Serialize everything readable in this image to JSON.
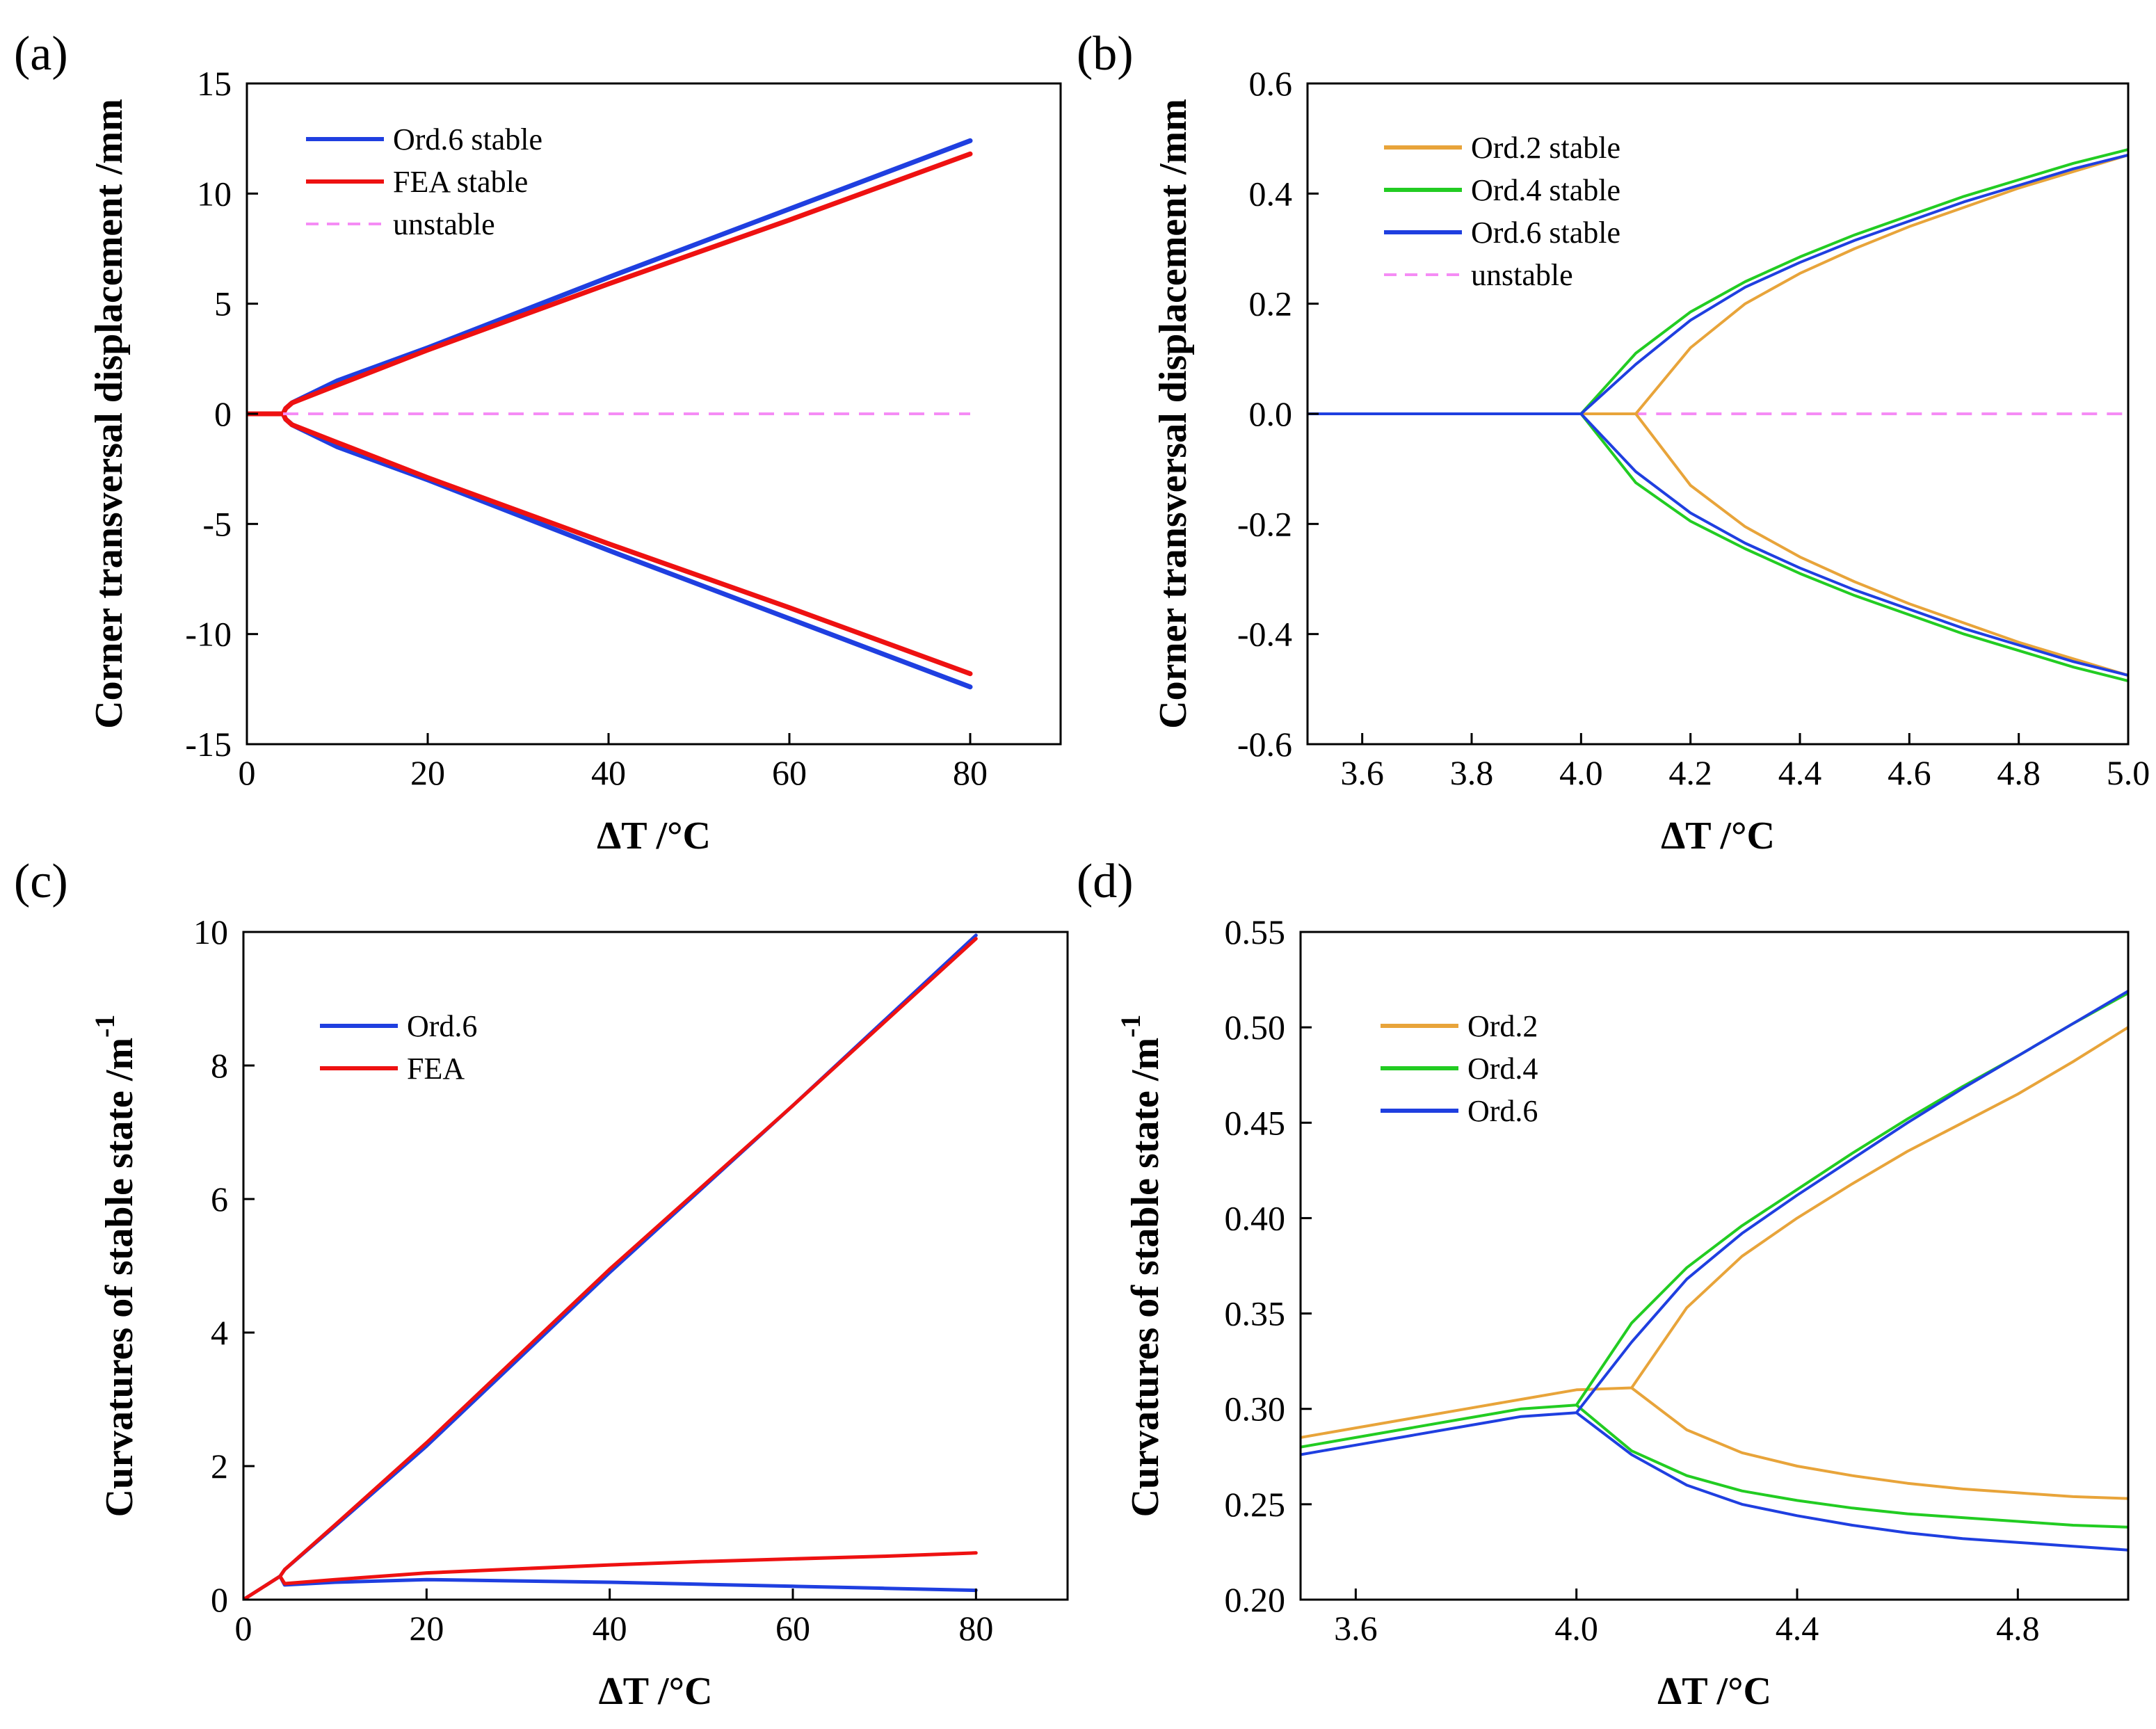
{
  "figure": {
    "panel_labels": [
      "(a)",
      "(b)",
      "(c)",
      "(d)"
    ]
  },
  "chart_data": [
    {
      "id": "a",
      "type": "line",
      "panel_label": "(a)",
      "xlabel": "ΔT /°C",
      "ylabel": "Corner transversal displacement /mm",
      "xlim": [
        0,
        90
      ],
      "ylim": [
        -15,
        15
      ],
      "xticks": [
        0,
        20,
        40,
        60,
        80
      ],
      "xtick_labels": [
        "0",
        "20",
        "40",
        "60",
        "80"
      ],
      "yticks": [
        -15,
        -10,
        -5,
        0,
        5,
        10,
        15
      ],
      "ytick_labels": [
        "-15",
        "-10",
        "-5",
        "0",
        "5",
        "10",
        "15"
      ],
      "legend_position": "top-left",
      "legend": [
        {
          "label": "Ord.6 stable",
          "color": "#1f3fe0",
          "dashed": false
        },
        {
          "label": "FEA stable",
          "color": "#ee1111",
          "dashed": false
        },
        {
          "label": "unstable",
          "color": "#f58cf5",
          "dashed": true
        }
      ],
      "series": [
        {
          "name": "Ord.6 stable",
          "color": "#1f3fe0",
          "dashed": false,
          "width": 7,
          "x": [
            0,
            4,
            4.3,
            5,
            10,
            20,
            40,
            60,
            80
          ],
          "y": [
            0,
            0,
            0.25,
            0.5,
            1.5,
            3.0,
            6.2,
            9.3,
            12.4
          ]
        },
        {
          "name": "Ord.6 stable",
          "color": "#1f3fe0",
          "dashed": false,
          "width": 7,
          "x": [
            0,
            4,
            4.3,
            5,
            10,
            20,
            40,
            60,
            80
          ],
          "y": [
            0,
            0,
            -0.25,
            -0.5,
            -1.5,
            -3.0,
            -6.2,
            -9.3,
            -12.4
          ]
        },
        {
          "name": "FEA stable",
          "color": "#ee1111",
          "dashed": false,
          "width": 7,
          "x": [
            0,
            4,
            4.3,
            5,
            10,
            20,
            40,
            60,
            80
          ],
          "y": [
            0,
            0,
            0.25,
            0.5,
            1.3,
            2.9,
            5.9,
            8.8,
            11.8
          ]
        },
        {
          "name": "FEA stable",
          "color": "#ee1111",
          "dashed": false,
          "width": 7,
          "x": [
            0,
            4,
            4.3,
            5,
            10,
            20,
            40,
            60,
            80
          ],
          "y": [
            0,
            0,
            -0.25,
            -0.5,
            -1.3,
            -2.9,
            -5.9,
            -8.8,
            -11.8
          ]
        },
        {
          "name": "unstable",
          "color": "#f58cf5",
          "dashed": true,
          "width": 4,
          "x": [
            4,
            80
          ],
          "y": [
            0,
            0
          ]
        }
      ]
    },
    {
      "id": "b",
      "type": "line",
      "panel_label": "(b)",
      "xlabel": "ΔT /°C",
      "ylabel": "Corner transversal displacement /mm",
      "xlim": [
        3.5,
        5.0
      ],
      "ylim": [
        -0.6,
        0.6
      ],
      "xticks": [
        3.6,
        3.8,
        4.0,
        4.2,
        4.4,
        4.6,
        4.8,
        5.0
      ],
      "xtick_labels": [
        "3.6",
        "3.8",
        "4.0",
        "4.2",
        "4.4",
        "4.6",
        "4.8",
        "5.0"
      ],
      "yticks": [
        -0.6,
        -0.4,
        -0.2,
        0.0,
        0.2,
        0.4,
        0.6
      ],
      "ytick_labels": [
        "-0.6",
        "-0.4",
        "-0.2",
        "0.0",
        "0.2",
        "0.4",
        "0.6"
      ],
      "legend_position": "top-left",
      "legend": [
        {
          "label": "Ord.2 stable",
          "color": "#e8a43a",
          "dashed": false
        },
        {
          "label": "Ord.4 stable",
          "color": "#22cc22",
          "dashed": false
        },
        {
          "label": "Ord.6 stable",
          "color": "#1f3fe0",
          "dashed": false
        },
        {
          "label": "unstable",
          "color": "#f58cf5",
          "dashed": true
        }
      ],
      "series": [
        {
          "name": "unstable",
          "color": "#f58cf5",
          "dashed": true,
          "width": 4,
          "x": [
            4.0,
            5.0
          ],
          "y": [
            0,
            0
          ]
        },
        {
          "name": "Ord.2 stable",
          "color": "#e8a43a",
          "dashed": false,
          "width": 4,
          "x": [
            4.0,
            4.1,
            4.2,
            4.3,
            4.4,
            4.5,
            4.6,
            4.7,
            4.8,
            4.9,
            5.0
          ],
          "y": [
            0,
            0,
            0.12,
            0.2,
            0.255,
            0.3,
            0.34,
            0.375,
            0.41,
            0.44,
            0.47
          ]
        },
        {
          "name": "Ord.2 stable",
          "color": "#e8a43a",
          "dashed": false,
          "width": 4,
          "x": [
            4.0,
            4.1,
            4.2,
            4.3,
            4.4,
            4.5,
            4.6,
            4.7,
            4.8,
            4.9,
            5.0
          ],
          "y": [
            0,
            0,
            -0.13,
            -0.205,
            -0.26,
            -0.305,
            -0.345,
            -0.38,
            -0.415,
            -0.445,
            -0.475
          ]
        },
        {
          "name": "Ord.4 stable",
          "color": "#22cc22",
          "dashed": false,
          "width": 4,
          "x": [
            4.0,
            4.1,
            4.2,
            4.3,
            4.4,
            4.5,
            4.6,
            4.7,
            4.8,
            4.9,
            5.0
          ],
          "y": [
            0,
            0.11,
            0.185,
            0.24,
            0.285,
            0.325,
            0.36,
            0.395,
            0.425,
            0.455,
            0.48
          ]
        },
        {
          "name": "Ord.4 stable",
          "color": "#22cc22",
          "dashed": false,
          "width": 4,
          "x": [
            4.0,
            4.1,
            4.2,
            4.3,
            4.4,
            4.5,
            4.6,
            4.7,
            4.8,
            4.9,
            5.0
          ],
          "y": [
            0,
            -0.125,
            -0.195,
            -0.245,
            -0.29,
            -0.33,
            -0.365,
            -0.4,
            -0.43,
            -0.46,
            -0.485
          ]
        },
        {
          "name": "Ord.6 stable",
          "color": "#1f3fe0",
          "dashed": false,
          "width": 4,
          "x": [
            3.5,
            4.0,
            4.1,
            4.2,
            4.3,
            4.4,
            4.5,
            4.6,
            4.7,
            4.8,
            4.9,
            5.0
          ],
          "y": [
            0,
            0,
            0.09,
            0.17,
            0.23,
            0.275,
            0.315,
            0.35,
            0.385,
            0.415,
            0.445,
            0.47
          ]
        },
        {
          "name": "Ord.6 stable",
          "color": "#1f3fe0",
          "dashed": false,
          "width": 4,
          "x": [
            3.5,
            4.0,
            4.1,
            4.2,
            4.3,
            4.4,
            4.5,
            4.6,
            4.7,
            4.8,
            4.9,
            5.0
          ],
          "y": [
            0,
            0,
            -0.105,
            -0.18,
            -0.235,
            -0.28,
            -0.32,
            -0.355,
            -0.39,
            -0.42,
            -0.45,
            -0.475
          ]
        }
      ]
    },
    {
      "id": "c",
      "type": "line",
      "panel_label": "(c)",
      "xlabel": "ΔT /°C",
      "ylabel": "Curvatures of stable state /m",
      "ylabel_superscript": "-1",
      "xlim": [
        0,
        90
      ],
      "ylim": [
        0,
        10
      ],
      "xticks": [
        0,
        20,
        40,
        60,
        80
      ],
      "xtick_labels": [
        "0",
        "20",
        "40",
        "60",
        "80"
      ],
      "yticks": [
        0,
        2,
        4,
        6,
        8,
        10
      ],
      "ytick_labels": [
        "0",
        "2",
        "4",
        "6",
        "8",
        "10"
      ],
      "legend_position": "top-left",
      "legend": [
        {
          "label": "Ord.6",
          "color": "#1f3fe0",
          "dashed": false
        },
        {
          "label": "FEA",
          "color": "#ee1111",
          "dashed": false
        }
      ],
      "series": [
        {
          "name": "Ord.6",
          "color": "#1f3fe0",
          "dashed": false,
          "width": 5,
          "x": [
            0,
            4,
            4.5,
            10,
            20,
            40,
            60,
            80
          ],
          "y": [
            0,
            0.35,
            0.45,
            1.1,
            2.3,
            4.9,
            7.4,
            9.95
          ]
        },
        {
          "name": "FEA",
          "color": "#ee1111",
          "dashed": false,
          "width": 5,
          "x": [
            0,
            4,
            4.5,
            10,
            20,
            40,
            60,
            80
          ],
          "y": [
            0,
            0.35,
            0.45,
            1.12,
            2.35,
            4.95,
            7.4,
            9.9
          ]
        },
        {
          "name": "Ord.6",
          "color": "#1f3fe0",
          "dashed": false,
          "width": 5,
          "x": [
            4,
            4.5,
            10,
            20,
            30,
            40,
            50,
            60,
            70,
            80
          ],
          "y": [
            0.35,
            0.22,
            0.26,
            0.3,
            0.28,
            0.26,
            0.23,
            0.2,
            0.17,
            0.14
          ]
        },
        {
          "name": "FEA",
          "color": "#ee1111",
          "dashed": false,
          "width": 5,
          "x": [
            4,
            4.5,
            10,
            20,
            30,
            40,
            50,
            60,
            70,
            80
          ],
          "y": [
            0.35,
            0.24,
            0.3,
            0.4,
            0.46,
            0.52,
            0.57,
            0.61,
            0.65,
            0.7
          ]
        }
      ]
    },
    {
      "id": "d",
      "type": "line",
      "panel_label": "(d)",
      "xlabel": "ΔT /°C",
      "ylabel": "Curvatures of stable state /m",
      "ylabel_superscript": "-1",
      "xlim": [
        3.5,
        5.0
      ],
      "ylim": [
        0.2,
        0.55
      ],
      "xticks": [
        3.6,
        4.0,
        4.4,
        4.8
      ],
      "xtick_labels": [
        "3.6",
        "4.0",
        "4.4",
        "4.8"
      ],
      "yticks": [
        0.2,
        0.25,
        0.3,
        0.35,
        0.4,
        0.45,
        0.5,
        0.55
      ],
      "ytick_labels": [
        "0.20",
        "0.25",
        "0.30",
        "0.35",
        "0.40",
        "0.45",
        "0.50",
        "0.55"
      ],
      "legend_position": "top-left",
      "legend": [
        {
          "label": "Ord.2",
          "color": "#e8a43a",
          "dashed": false
        },
        {
          "label": "Ord.4",
          "color": "#22cc22",
          "dashed": false
        },
        {
          "label": "Ord.6",
          "color": "#1f3fe0",
          "dashed": false
        }
      ],
      "series": [
        {
          "name": "Ord.2",
          "color": "#e8a43a",
          "dashed": false,
          "width": 4,
          "x": [
            3.5,
            3.6,
            3.7,
            3.8,
            3.9,
            4.0,
            4.1,
            4.2,
            4.3,
            4.4,
            4.5,
            4.6,
            4.7,
            4.8,
            4.9,
            5.0
          ],
          "y": [
            0.285,
            0.29,
            0.295,
            0.3,
            0.305,
            0.31,
            0.311,
            0.353,
            0.38,
            0.4,
            0.418,
            0.435,
            0.45,
            0.465,
            0.482,
            0.5
          ]
        },
        {
          "name": "Ord.2",
          "color": "#e8a43a",
          "dashed": false,
          "width": 4,
          "x": [
            4.1,
            4.2,
            4.3,
            4.4,
            4.5,
            4.6,
            4.7,
            4.8,
            4.9,
            5.0
          ],
          "y": [
            0.311,
            0.289,
            0.277,
            0.27,
            0.265,
            0.261,
            0.258,
            0.256,
            0.254,
            0.253
          ]
        },
        {
          "name": "Ord.4",
          "color": "#22cc22",
          "dashed": false,
          "width": 4,
          "x": [
            3.5,
            3.6,
            3.7,
            3.8,
            3.9,
            4.0,
            4.1,
            4.2,
            4.3,
            4.4,
            4.5,
            4.6,
            4.7,
            4.8,
            4.9,
            5.0
          ],
          "y": [
            0.28,
            0.285,
            0.29,
            0.295,
            0.3,
            0.302,
            0.345,
            0.374,
            0.396,
            0.415,
            0.434,
            0.452,
            0.469,
            0.485,
            0.502,
            0.518
          ]
        },
        {
          "name": "Ord.4",
          "color": "#22cc22",
          "dashed": false,
          "width": 4,
          "x": [
            4.0,
            4.1,
            4.2,
            4.3,
            4.4,
            4.5,
            4.6,
            4.7,
            4.8,
            4.9,
            5.0
          ],
          "y": [
            0.302,
            0.278,
            0.265,
            0.257,
            0.252,
            0.248,
            0.245,
            0.243,
            0.241,
            0.239,
            0.238
          ]
        },
        {
          "name": "Ord.6",
          "color": "#1f3fe0",
          "dashed": false,
          "width": 4,
          "x": [
            3.5,
            3.6,
            3.7,
            3.8,
            3.9,
            4.0,
            4.1,
            4.2,
            4.3,
            4.4,
            4.5,
            4.6,
            4.7,
            4.8,
            4.9,
            5.0
          ],
          "y": [
            0.276,
            0.281,
            0.286,
            0.291,
            0.296,
            0.298,
            0.335,
            0.368,
            0.392,
            0.412,
            0.431,
            0.45,
            0.468,
            0.485,
            0.502,
            0.519
          ]
        },
        {
          "name": "Ord.6",
          "color": "#1f3fe0",
          "dashed": false,
          "width": 4,
          "x": [
            4.0,
            4.1,
            4.2,
            4.3,
            4.4,
            4.5,
            4.6,
            4.7,
            4.8,
            4.9,
            5.0
          ],
          "y": [
            0.298,
            0.276,
            0.26,
            0.25,
            0.244,
            0.239,
            0.235,
            0.232,
            0.23,
            0.228,
            0.226
          ]
        }
      ]
    }
  ]
}
